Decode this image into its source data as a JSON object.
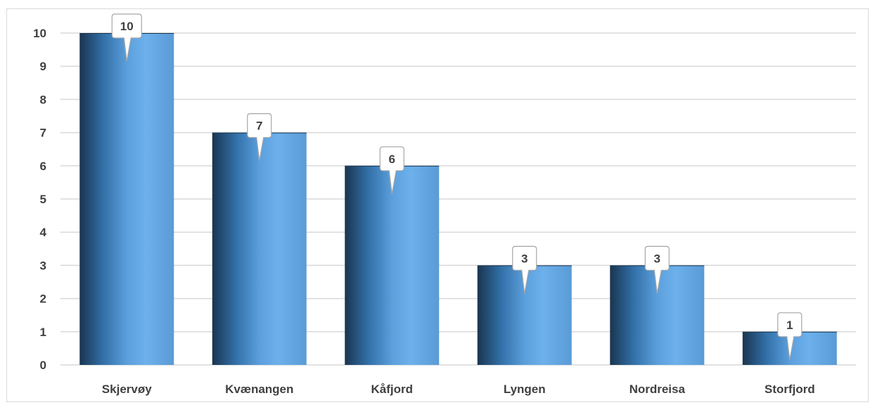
{
  "chart_data": {
    "type": "bar",
    "title": "",
    "xlabel": "",
    "ylabel": "",
    "categories": [
      "Skjervøy",
      "Kvænangen",
      "Kåfjord",
      "Lyngen",
      "Nordreisa",
      "Storfjord"
    ],
    "values": [
      10,
      7,
      6,
      3,
      3,
      1
    ],
    "data_labels": [
      "10",
      "7",
      "6",
      "3",
      "3",
      "1"
    ],
    "ylim": [
      0,
      10
    ],
    "yticks": [
      "0",
      "1",
      "2",
      "3",
      "4",
      "5",
      "6",
      "7",
      "8",
      "9",
      "10"
    ],
    "grid": true,
    "legend": "none",
    "colors": {
      "bar_dark": "#1e3a57",
      "bar_mid": "#3f7fbf",
      "bar_light": "#6aaee8",
      "grid": "#d9d9d9",
      "text": "#404040"
    }
  }
}
